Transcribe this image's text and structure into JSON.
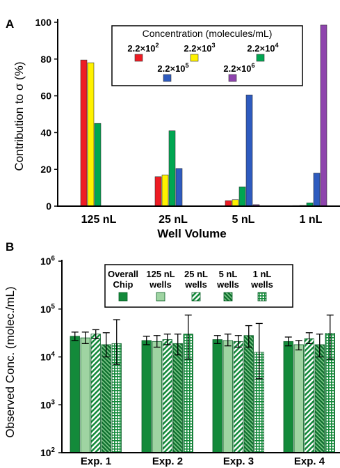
{
  "colors": {
    "red": "#ee1c24",
    "yellow": "#fff200",
    "green": "#00a651",
    "blue": "#2e5bbf",
    "purple": "#8e44ad",
    "dark_green": "#138a3a",
    "light_green": "#8dc98f"
  },
  "chart_data": [
    {
      "panel_label": "A",
      "type": "bar",
      "ylabel": "Contribution to σ (%)",
      "xlabel": "Well Volume",
      "ylim": [
        0,
        100
      ],
      "yticks": [
        "0",
        "20",
        "40",
        "60",
        "80",
        "100"
      ],
      "categories": [
        "125 nL",
        "25 nL",
        "5 nL",
        "1 nL"
      ],
      "legend_title": "Concentration (molecules/mL)",
      "legend_position": "top-right",
      "series": [
        {
          "name": "2.2×10",
          "exp": "2",
          "color": "#ee1c24",
          "values": [
            79.5,
            16,
            3,
            0.3
          ]
        },
        {
          "name": "2.2×10",
          "exp": "3",
          "color": "#fff200",
          "values": [
            78,
            17,
            3.5,
            0.4
          ]
        },
        {
          "name": "2.2×10",
          "exp": "4",
          "color": "#00a651",
          "values": [
            45,
            41,
            10.5,
            1.8
          ]
        },
        {
          "name": "2.2×10",
          "exp": "5",
          "color": "#2e5bbf",
          "values": [
            null,
            20.5,
            60.5,
            18
          ]
        },
        {
          "name": "2.2×10",
          "exp": "6",
          "color": "#8e44ad",
          "values": [
            null,
            null,
            0.8,
            98.5
          ]
        }
      ]
    },
    {
      "panel_label": "B",
      "type": "bar",
      "ylabel": "Observed Conc. (molec./mL)",
      "yscale": "log",
      "ylim": [
        100,
        1000000
      ],
      "yticks": [
        {
          "base": "10",
          "exp": "2"
        },
        {
          "base": "10",
          "exp": "3"
        },
        {
          "base": "10",
          "exp": "4"
        },
        {
          "base": "10",
          "exp": "5"
        },
        {
          "base": "10",
          "exp": "6"
        }
      ],
      "categories": [
        "Exp. 1",
        "Exp. 2",
        "Exp. 3",
        "Exp. 4"
      ],
      "legend_position": "top-center",
      "series": [
        {
          "name": "Overall Chip",
          "values": [
            27000,
            22000,
            23000,
            21000
          ],
          "err_high": [
            33000,
            27000,
            28000,
            26000
          ],
          "err_low": [
            22000,
            18000,
            19000,
            17000
          ]
        },
        {
          "name": "125 nL wells",
          "values": [
            25000,
            21000,
            22000,
            18000
          ],
          "err_high": [
            33000,
            28000,
            30000,
            22000
          ],
          "err_low": [
            19000,
            16000,
            17000,
            14000
          ]
        },
        {
          "name": "25 nL wells",
          "values": [
            30000,
            23000,
            21000,
            24000
          ],
          "err_high": [
            37000,
            30000,
            28000,
            32000
          ],
          "err_low": [
            24000,
            18000,
            16000,
            19000
          ]
        },
        {
          "name": "5 nL wells",
          "values": [
            18000,
            19000,
            28000,
            18000
          ],
          "err_high": [
            32000,
            30000,
            45000,
            30000
          ],
          "err_low": [
            10000,
            11000,
            16000,
            10000
          ]
        },
        {
          "name": "1 nL wells",
          "values": [
            19000,
            30000,
            12500,
            31000
          ],
          "err_high": [
            60000,
            75000,
            50000,
            75000
          ],
          "err_low": [
            7000,
            9000,
            3500,
            9000
          ]
        }
      ]
    }
  ]
}
